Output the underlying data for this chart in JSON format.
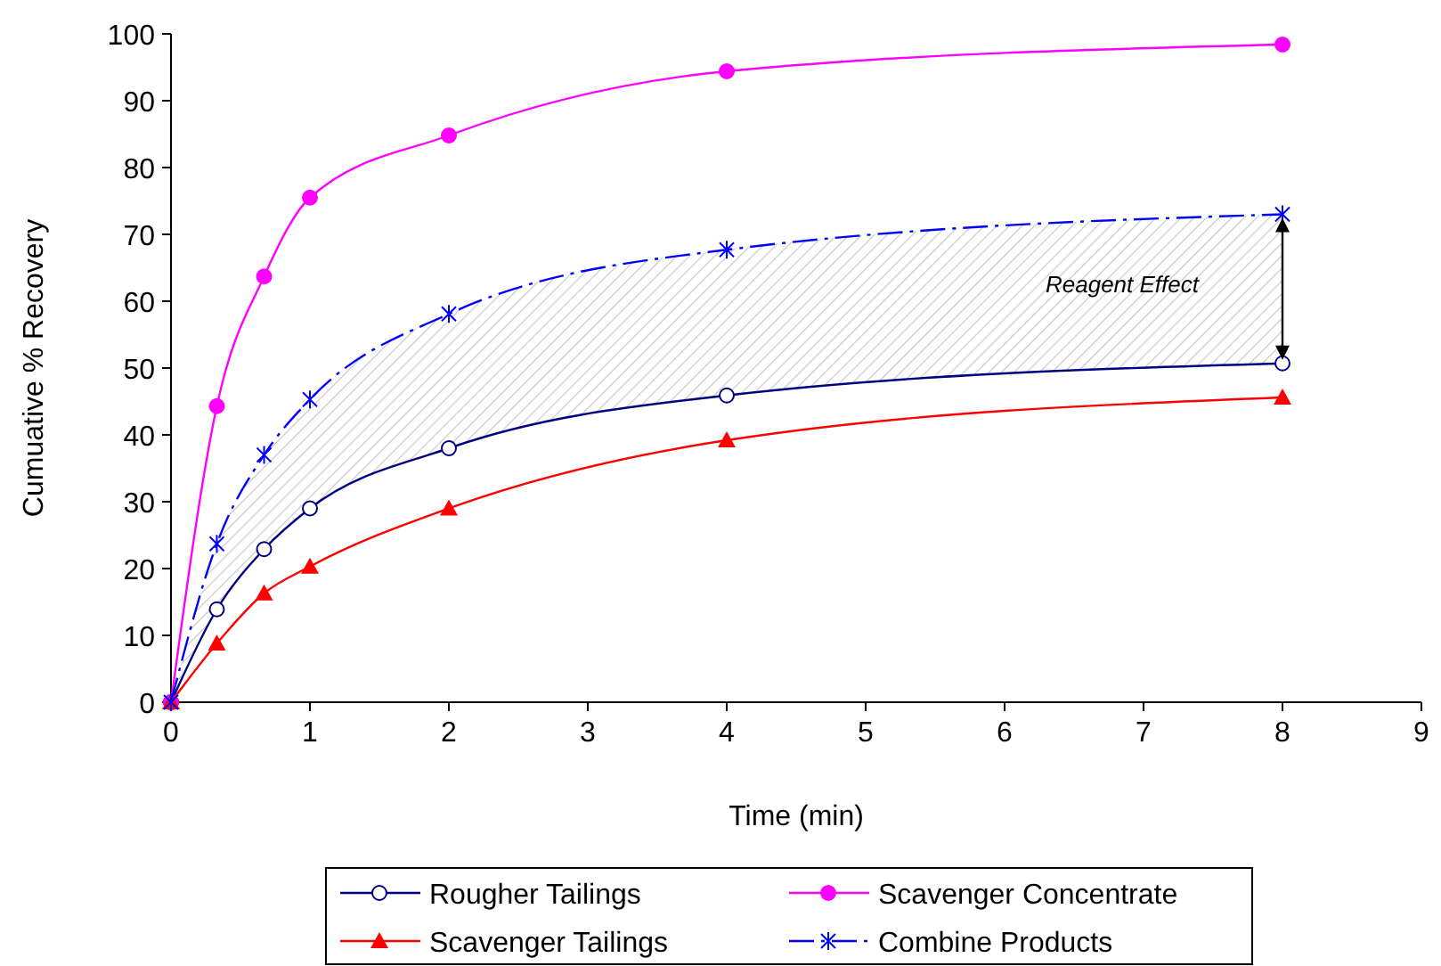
{
  "chart_data": {
    "type": "line",
    "xlabel": "Time (min)",
    "ylabel": "Cumuative % Recovery",
    "x": [
      0,
      0.33,
      0.67,
      1,
      2,
      4,
      8
    ],
    "series": [
      {
        "name": "Rougher Tailings",
        "color": "#000080",
        "marker": "circle",
        "values": [
          0,
          13.9,
          22.9,
          29,
          38,
          45.9,
          50.7
        ]
      },
      {
        "name": "Scavenger Concentrate",
        "color": "#ff00ff",
        "marker": "circle",
        "values": [
          0,
          44.3,
          63.7,
          75.5,
          84.8,
          94.4,
          98.4
        ]
      },
      {
        "name": "Scavenger Tailings",
        "color": "#ff0000",
        "marker": "triangle",
        "values": [
          0,
          8.8,
          16.3,
          20.3,
          29,
          39.2,
          45.6
        ]
      },
      {
        "name": "Combine Products",
        "color": "#0000ff",
        "marker": "cross",
        "line_style": "dashed",
        "values": [
          0,
          23.7,
          37,
          45.3,
          58.1,
          67.7,
          73
        ],
        "lower": [
          0,
          13.9,
          22.9,
          29,
          38,
          45.9,
          50.7
        ],
        "upper": [
          0,
          23.7,
          37,
          45.3,
          58.1,
          67.7,
          73
        ]
      }
    ],
    "xlim": [
      0,
      9
    ],
    "xticks": [
      0,
      1,
      2,
      3,
      4,
      5,
      6,
      7,
      8,
      9
    ],
    "ylim": [
      0,
      100
    ],
    "yticks": [
      0,
      10,
      20,
      30,
      40,
      50,
      60,
      70,
      80,
      90,
      100
    ],
    "grid": false,
    "legend": "bottom",
    "annotations": [
      "Reagent Effect"
    ]
  }
}
